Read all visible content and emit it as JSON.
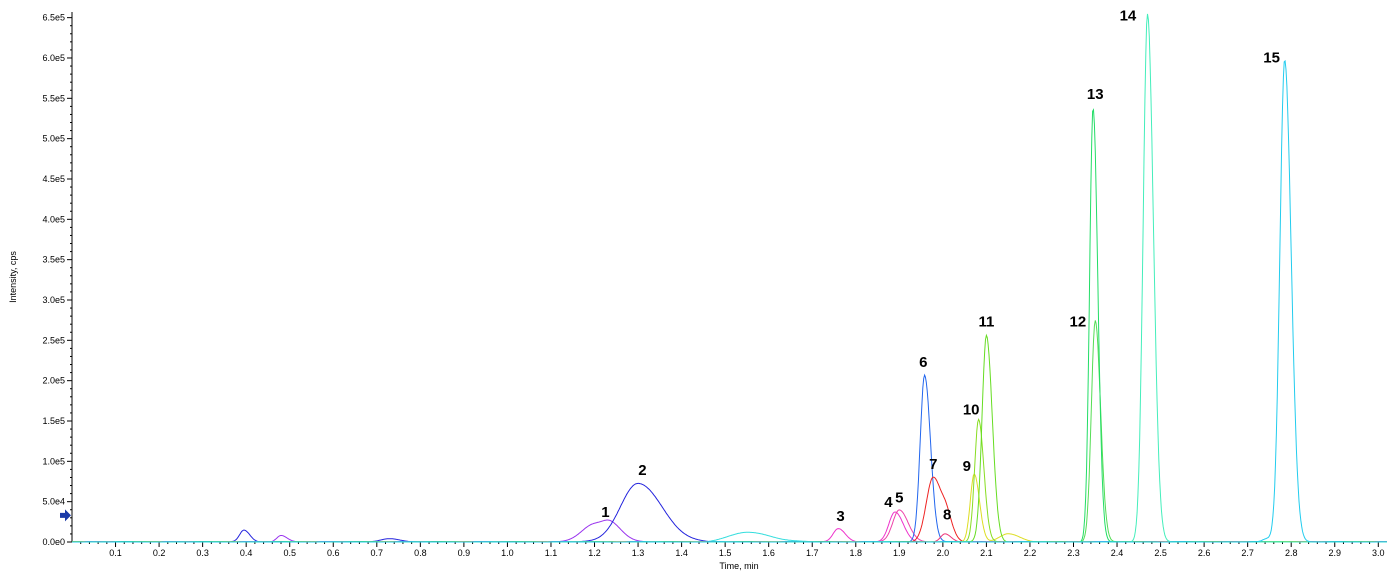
{
  "chart_data": {
    "type": "line",
    "xlabel": "Time, min",
    "ylabel": "Intensity, cps",
    "xlim": [
      0.0,
      3.02
    ],
    "ylim": [
      0,
      657000
    ],
    "x_ticks": [
      "0.1",
      "0.2",
      "0.3",
      "0.4",
      "0.5",
      "0.6",
      "0.7",
      "0.8",
      "0.9",
      "1.0",
      "1.1",
      "1.2",
      "1.3",
      "1.4",
      "1.5",
      "1.6",
      "1.7",
      "1.8",
      "1.9",
      "2.0",
      "2.1",
      "2.2",
      "2.3",
      "2.4",
      "2.5",
      "2.6",
      "2.7",
      "2.8",
      "2.9",
      "3.0"
    ],
    "y_ticks": [
      "0.0e0",
      "5.0e4",
      "1.0e5",
      "1.5e5",
      "2.0e5",
      "2.5e5",
      "3.0e5",
      "3.5e5",
      "4.0e5",
      "4.5e5",
      "5.0e5",
      "5.5e5",
      "6.0e5",
      "6.5e5"
    ],
    "grid": false,
    "marker_y": 33000,
    "series": [
      {
        "color": "#9933ee",
        "peaks": [
          [
            0.48,
            8000,
            0.01
          ],
          [
            1.2,
            22000,
            0.03
          ],
          [
            1.24,
            12000,
            0.018
          ]
        ]
      },
      {
        "color": "#2222dd",
        "peaks": [
          [
            0.395,
            15000,
            0.01
          ],
          [
            0.73,
            4000,
            0.02
          ],
          [
            1.3,
            73000,
            0.04
          ]
        ]
      },
      {
        "color": "#33dddd",
        "peaks": [
          [
            1.55,
            12000,
            0.04
          ]
        ]
      },
      {
        "color": "#ee33cc",
        "peaks": [
          [
            1.76,
            17000,
            0.012
          ],
          [
            1.89,
            37000,
            0.014
          ]
        ]
      },
      {
        "color": "#ee44aa",
        "peaks": [
          [
            1.9,
            40000,
            0.015
          ]
        ]
      },
      {
        "color": "#2266ee",
        "peaks": [
          [
            1.958,
            207000,
            0.01
          ]
        ]
      },
      {
        "color": "#ee2222",
        "peaks": [
          [
            1.978,
            80000,
            0.016
          ],
          [
            2.01,
            18000,
            0.01
          ]
        ]
      },
      {
        "color": "#ee3377",
        "peaks": [
          [
            2.005,
            10000,
            0.01
          ]
        ]
      },
      {
        "color": "#dddd22",
        "peaks": [
          [
            2.072,
            84000,
            0.009
          ],
          [
            2.15,
            10000,
            0.02
          ]
        ]
      },
      {
        "color": "#88dd22",
        "peaks": [
          [
            2.082,
            152000,
            0.009
          ]
        ]
      },
      {
        "color": "#66dd22",
        "peaks": [
          [
            2.1,
            256000,
            0.01
          ]
        ]
      },
      {
        "color": "#55dd55",
        "peaks": [
          [
            2.35,
            275000,
            0.009
          ]
        ]
      },
      {
        "color": "#22dd66",
        "peaks": [
          [
            2.345,
            538000,
            0.008
          ]
        ]
      },
      {
        "color": "#44eebb",
        "peaks": [
          [
            2.47,
            655000,
            0.01
          ]
        ]
      },
      {
        "color": "#22ccee",
        "peaks": [
          [
            2.785,
            598000,
            0.011
          ],
          [
            2.745,
            4000,
            0.01
          ]
        ]
      }
    ],
    "annotations": [
      {
        "text": "1",
        "x": 1.225,
        "y": 25000
      },
      {
        "text": "2",
        "x": 1.31,
        "y": 77000
      },
      {
        "text": "3",
        "x": 1.765,
        "y": 20000
      },
      {
        "text": "4",
        "x": 1.875,
        "y": 37000
      },
      {
        "text": "5",
        "x": 1.9,
        "y": 43000
      },
      {
        "text": "6",
        "x": 1.955,
        "y": 211000
      },
      {
        "text": "7",
        "x": 1.978,
        "y": 84000
      },
      {
        "text": "8",
        "x": 2.01,
        "y": 22000
      },
      {
        "text": "9",
        "x": 2.055,
        "y": 82000
      },
      {
        "text": "10",
        "x": 2.065,
        "y": 152000
      },
      {
        "text": "11",
        "x": 2.1,
        "y": 261000
      },
      {
        "text": "12",
        "x": 2.31,
        "y": 261000
      },
      {
        "text": "13",
        "x": 2.35,
        "y": 543000
      },
      {
        "text": "14",
        "x": 2.425,
        "y": 640000
      },
      {
        "text": "15",
        "x": 2.755,
        "y": 588000
      }
    ]
  }
}
